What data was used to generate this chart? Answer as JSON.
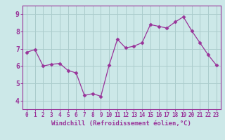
{
  "x": [
    0,
    1,
    2,
    3,
    4,
    5,
    6,
    7,
    8,
    9,
    10,
    11,
    12,
    13,
    14,
    15,
    16,
    17,
    18,
    19,
    20,
    21,
    22,
    23
  ],
  "y": [
    6.8,
    6.95,
    6.0,
    6.1,
    6.15,
    5.75,
    5.6,
    4.3,
    4.4,
    4.25,
    6.05,
    7.55,
    7.05,
    7.15,
    7.35,
    8.4,
    8.3,
    8.2,
    8.55,
    8.85,
    8.05,
    7.35,
    6.65,
    6.05
  ],
  "line_color": "#993399",
  "marker": "D",
  "marker_size": 2.5,
  "xlabel": "Windchill (Refroidissement éolien,°C)",
  "ylim": [
    3.5,
    9.5
  ],
  "xlim": [
    -0.5,
    23.5
  ],
  "yticks": [
    4,
    5,
    6,
    7,
    8,
    9
  ],
  "xticks": [
    0,
    1,
    2,
    3,
    4,
    5,
    6,
    7,
    8,
    9,
    10,
    11,
    12,
    13,
    14,
    15,
    16,
    17,
    18,
    19,
    20,
    21,
    22,
    23
  ],
  "bg_color": "#cce8e8",
  "grid_color": "#aacccc",
  "axis_color": "#993399",
  "label_color": "#993399",
  "tick_color": "#993399",
  "font_family": "monospace",
  "tick_fontsize_x": 5.5,
  "tick_fontsize_y": 7,
  "xlabel_fontsize": 6.5
}
